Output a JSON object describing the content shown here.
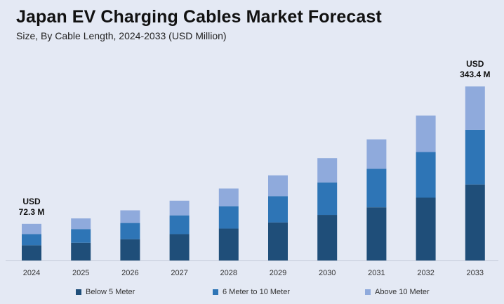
{
  "title": "Japan EV Charging Cables Market Forecast",
  "subtitle": "Size, By Cable Length, 2024-2033 (USD Million)",
  "chart_data": {
    "type": "bar",
    "stacked": true,
    "categories": [
      "2024",
      "2025",
      "2026",
      "2027",
      "2028",
      "2029",
      "2030",
      "2031",
      "2032",
      "2033"
    ],
    "series": [
      {
        "name": "Below 5 Meter",
        "color": "#1f4e79",
        "values": [
          30,
          35,
          42,
          52,
          63,
          75,
          90,
          105,
          124,
          150
        ]
      },
      {
        "name": "6 Meter to 10 Meter",
        "color": "#2e75b6",
        "values": [
          22,
          27,
          32,
          37,
          44,
          52,
          64,
          76,
          90,
          108
        ]
      },
      {
        "name": "Above 10 Meter",
        "color": "#8faadc",
        "values": [
          20.3,
          21,
          25,
          29,
          35,
          41,
          48,
          58,
          72,
          85.4
        ]
      }
    ],
    "totals": [
      72.3,
      83,
      99,
      118,
      142,
      168,
      202,
      239,
      286,
      343.4
    ],
    "annotations": [
      {
        "category": "2024",
        "line1": "USD",
        "line2": "72.3 M"
      },
      {
        "category": "2033",
        "line1": "USD",
        "line2": "343.4 M"
      }
    ],
    "ylim": [
      0,
      345
    ],
    "grid": false,
    "legend_position": "bottom"
  }
}
